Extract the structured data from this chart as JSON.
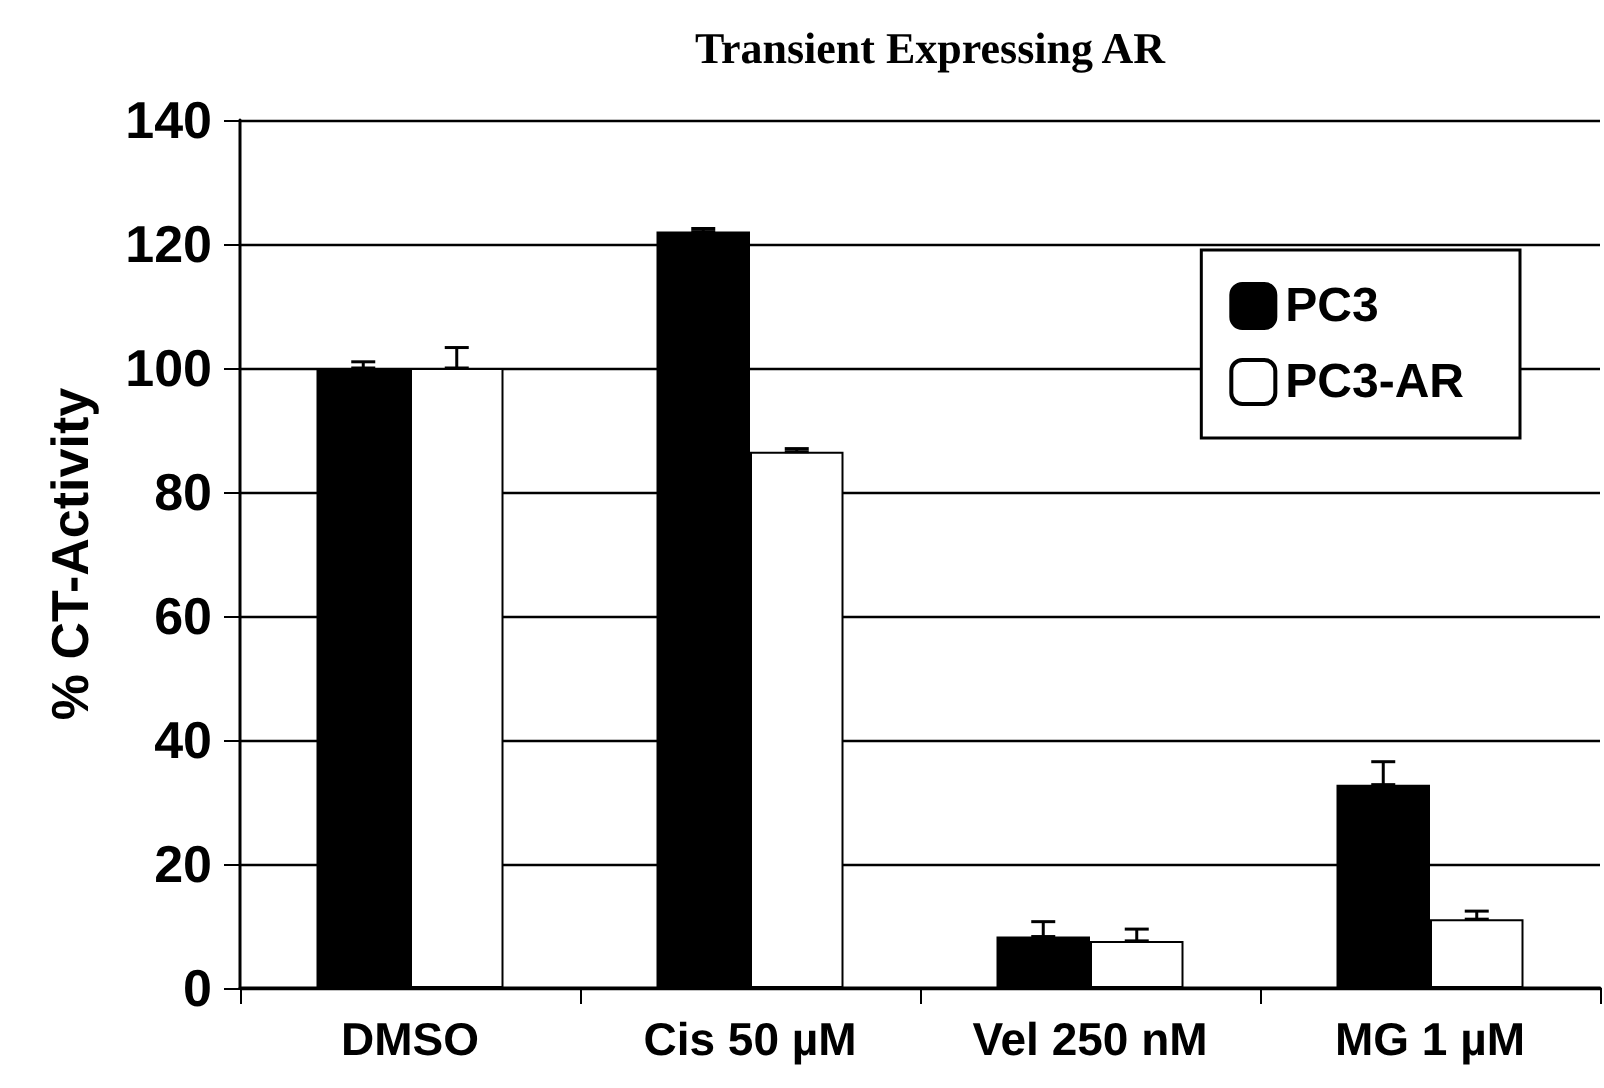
{
  "chart_data": {
    "type": "bar",
    "title": "Transient Expressing AR",
    "ylabel": "% CT-Activity",
    "categories": [
      "DMSO",
      "Cis 50 µM",
      "Vel 250 nM",
      "MG 1 µM"
    ],
    "series": [
      {
        "name": "PC3",
        "color": "#000000",
        "values": [
          100,
          122,
          8.3,
          32.8
        ],
        "errors": [
          [
            100,
            101
          ],
          [
            122,
            122.5
          ],
          [
            8.3,
            10.7
          ],
          [
            32.8,
            36.5
          ]
        ]
      },
      {
        "name": "PC3-AR",
        "color": "#ffffff",
        "values": [
          100,
          86.5,
          7.6,
          11.1
        ],
        "errors": [
          [
            100,
            103.3
          ],
          [
            86.5,
            87
          ],
          [
            7.6,
            9.5
          ],
          [
            11.1,
            12.4
          ]
        ]
      }
    ],
    "ylim": [
      0,
      140
    ],
    "yticks": [
      0,
      20,
      40,
      60,
      80,
      100,
      120,
      140
    ],
    "grid": "y",
    "legend": "top right"
  }
}
